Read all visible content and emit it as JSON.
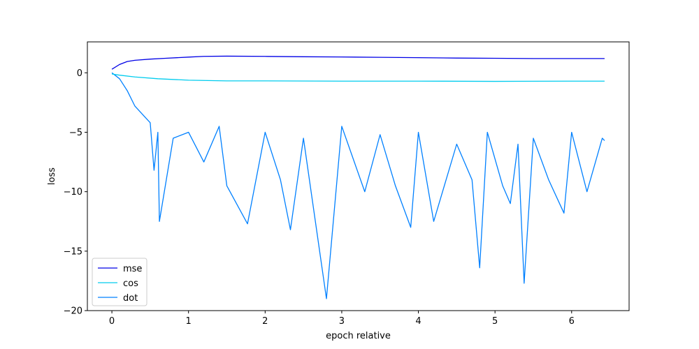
{
  "chart_data": {
    "type": "line",
    "title": "",
    "xlabel": "epoch relative",
    "ylabel": "loss",
    "xlim": [
      -0.32,
      6.75
    ],
    "ylim": [
      -20,
      2.6
    ],
    "xticks": [
      0,
      1,
      2,
      3,
      4,
      5,
      6
    ],
    "yticks": [
      0,
      -5,
      -10,
      -15,
      -20
    ],
    "grid": false,
    "legend": {
      "position": "lower-left",
      "entries": [
        "mse",
        "cos",
        "dot"
      ]
    },
    "series": [
      {
        "name": "mse",
        "color": "#0000e6",
        "x": [
          0,
          0.1,
          0.2,
          0.3,
          0.5,
          0.7,
          1.0,
          1.2,
          1.5,
          2.0,
          2.5,
          3.0,
          3.5,
          4.0,
          4.5,
          5.0,
          5.5,
          6.0,
          6.43
        ],
        "values": [
          0.3,
          0.7,
          0.95,
          1.05,
          1.15,
          1.22,
          1.32,
          1.38,
          1.4,
          1.38,
          1.35,
          1.33,
          1.3,
          1.27,
          1.24,
          1.22,
          1.2,
          1.2,
          1.2
        ]
      },
      {
        "name": "cos",
        "color": "#00ccee",
        "x": [
          0,
          0.1,
          0.3,
          0.6,
          1.0,
          1.5,
          2.0,
          3.0,
          4.0,
          5.0,
          6.0,
          6.43
        ],
        "values": [
          -0.1,
          -0.2,
          -0.35,
          -0.5,
          -0.62,
          -0.68,
          -0.68,
          -0.7,
          -0.7,
          -0.72,
          -0.7,
          -0.7
        ]
      },
      {
        "name": "dot",
        "color": "#0080ff",
        "x": [
          0,
          0.1,
          0.2,
          0.3,
          0.4,
          0.5,
          0.55,
          0.6,
          0.62,
          0.8,
          1.0,
          1.2,
          1.4,
          1.5,
          1.77,
          2.0,
          2.2,
          2.33,
          2.5,
          2.8,
          3.0,
          3.3,
          3.5,
          3.7,
          3.9,
          4.0,
          4.2,
          4.5,
          4.7,
          4.8,
          4.9,
          5.1,
          5.2,
          5.3,
          5.38,
          5.5,
          5.7,
          5.9,
          6.0,
          6.2,
          6.4,
          6.43
        ],
        "values": [
          0,
          -0.5,
          -1.5,
          -2.8,
          -3.5,
          -4.2,
          -8.2,
          -5.0,
          -12.5,
          -5.5,
          -5.0,
          -7.5,
          -4.5,
          -9.5,
          -12.7,
          -5.0,
          -9.0,
          -13.2,
          -5.5,
          -19.0,
          -4.5,
          -10.0,
          -5.2,
          -9.5,
          -13.0,
          -5.0,
          -12.5,
          -6.0,
          -9.0,
          -16.4,
          -5.0,
          -9.5,
          -11.0,
          -6.0,
          -17.7,
          -5.5,
          -9.0,
          -11.8,
          -5.0,
          -10.0,
          -5.5,
          -5.7
        ]
      }
    ]
  }
}
